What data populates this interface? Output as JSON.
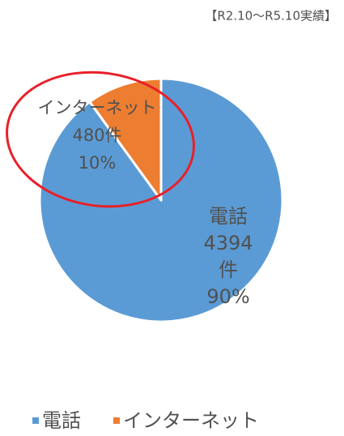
{
  "chart_data": {
    "type": "pie",
    "annotation": "【R2.10～R5.10実績】",
    "categories": [
      "電話",
      "インターネット"
    ],
    "values": [
      90,
      10
    ],
    "value_labels": [
      "90%",
      "10%"
    ],
    "counts": [
      4394,
      480
    ],
    "count_labels": [
      [
        "4394",
        "件"
      ],
      [
        "480件"
      ]
    ],
    "colors": [
      "#5b9bd5",
      "#ed7d31"
    ],
    "legend": "bottom"
  }
}
